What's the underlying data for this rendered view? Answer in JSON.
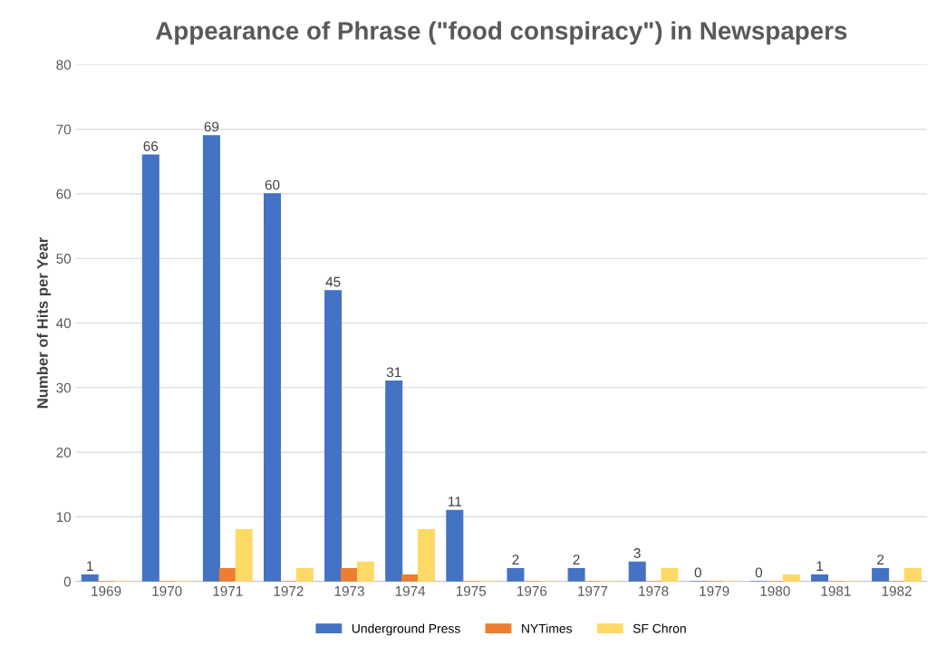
{
  "chart_data": {
    "type": "bar",
    "title": "Appearance of Phrase (\"food conspiracy\") in Newspapers",
    "ylabel": "Number of Hits per Year",
    "categories": [
      "1969",
      "1970",
      "1971",
      "1972",
      "1973",
      "1974",
      "1975",
      "1976",
      "1977",
      "1978",
      "1979",
      "1980",
      "1981",
      "1982"
    ],
    "series": [
      {
        "name": "Underground Press",
        "color": "#4472c4",
        "values": [
          1,
          66,
          69,
          60,
          45,
          31,
          11,
          2,
          2,
          3,
          0,
          0,
          1,
          2
        ],
        "value_labels": [
          "1",
          "66",
          "69",
          "60",
          "45",
          "31",
          "11",
          "2",
          "2",
          "3",
          "0",
          "0",
          "1",
          "2"
        ]
      },
      {
        "name": "NYTimes",
        "color": "#ed7d31",
        "values": [
          0,
          0,
          2,
          0,
          2,
          1,
          0,
          0,
          0,
          0,
          0,
          0,
          0,
          0
        ]
      },
      {
        "name": "SF Chron",
        "color": "#ffd966",
        "values": [
          0,
          0,
          8,
          2,
          3,
          8,
          0,
          0,
          0,
          2,
          0,
          1,
          0,
          2
        ]
      }
    ],
    "ylim": [
      0,
      80
    ],
    "yticks": [
      0,
      10,
      20,
      30,
      40,
      50,
      60,
      70,
      80
    ],
    "grid": "y",
    "legend": "bottom"
  }
}
